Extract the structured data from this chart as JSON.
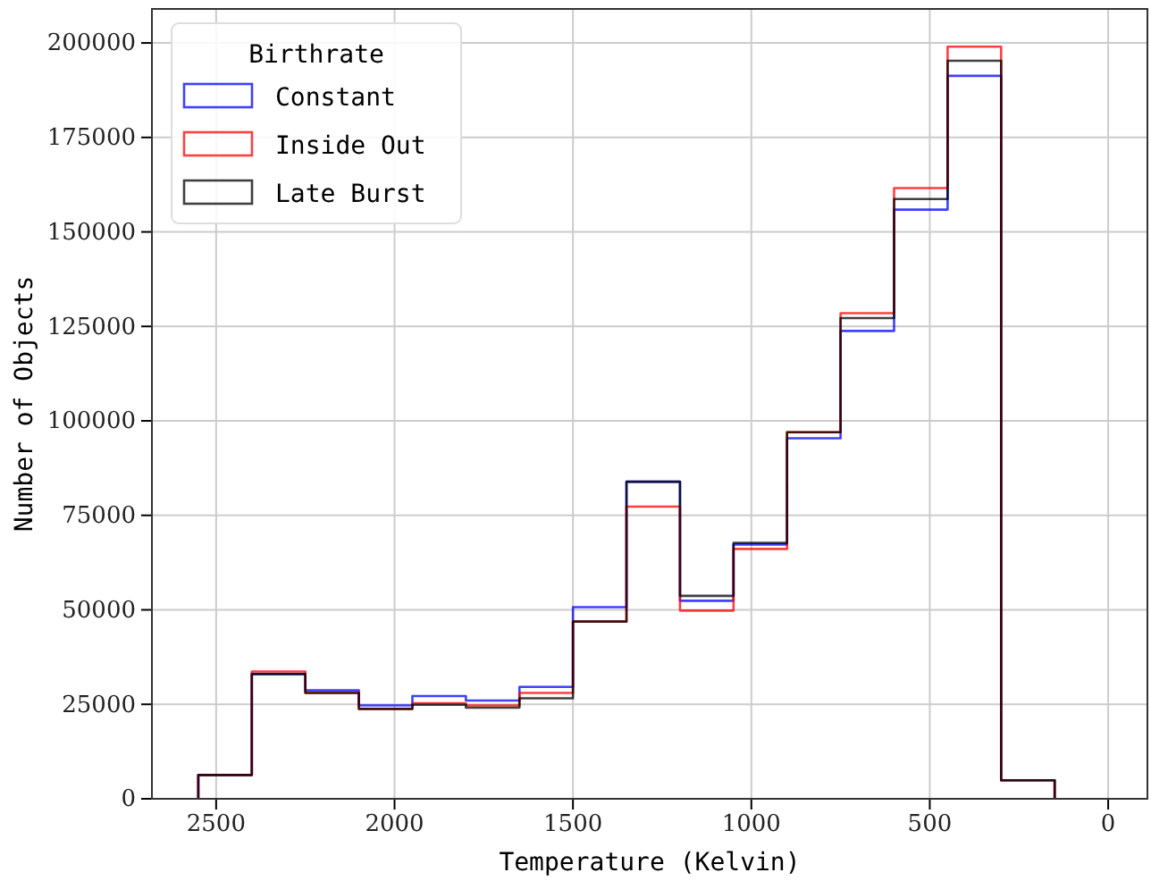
{
  "chart_data": {
    "type": "histogram",
    "xlabel": "Temperature (Kelvin)",
    "ylabel": "Number of Objects",
    "legend_title": "Birthrate",
    "legend": "top left",
    "grid": true,
    "bins": [
      2550,
      2400,
      2250,
      2100,
      1950,
      1800,
      1650,
      1500,
      1350,
      1200,
      1050,
      900,
      750,
      600,
      450,
      300,
      150
    ],
    "xlim": [
      2680,
      -110
    ],
    "xticks": [
      2500,
      2000,
      1500,
      1000,
      500,
      0
    ],
    "ylim": [
      0,
      209000
    ],
    "yticks": [
      0,
      25000,
      50000,
      75000,
      100000,
      125000,
      150000,
      175000,
      200000
    ],
    "series": [
      {
        "name": "Constant",
        "color": "#0000ff",
        "values": [
          6300,
          33000,
          28700,
          24700,
          27200,
          26000,
          29600,
          50700,
          83900,
          52400,
          67300,
          95400,
          123800,
          155900,
          191300,
          4900
        ]
      },
      {
        "name": "Inside Out",
        "color": "#ff0000",
        "values": [
          6300,
          33700,
          28000,
          23800,
          25300,
          24700,
          28000,
          46900,
          77300,
          49800,
          66100,
          97000,
          128500,
          161600,
          199000,
          4900
        ]
      },
      {
        "name": "Late Burst",
        "color": "#000000",
        "values": [
          6300,
          33000,
          28000,
          23800,
          24900,
          24100,
          26600,
          46900,
          83900,
          53700,
          67700,
          97000,
          127200,
          158700,
          195300,
          4900
        ]
      }
    ]
  }
}
